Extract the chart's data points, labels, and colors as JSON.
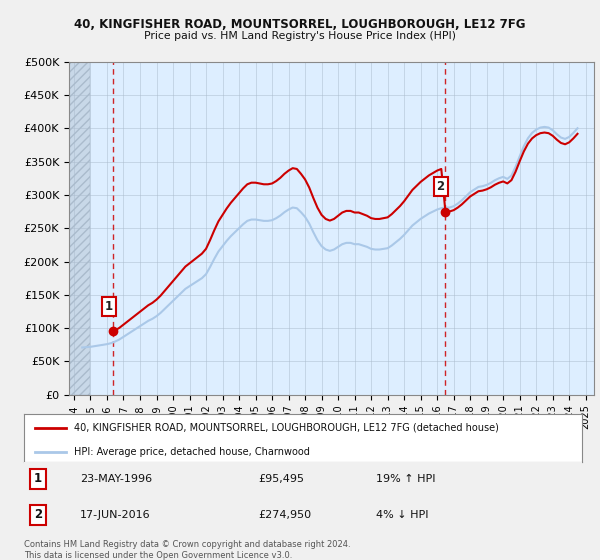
{
  "title1": "40, KINGFISHER ROAD, MOUNTSORREL, LOUGHBOROUGH, LE12 7FG",
  "title2": "Price paid vs. HM Land Registry's House Price Index (HPI)",
  "ylabel_ticks": [
    "£0",
    "£50K",
    "£100K",
    "£150K",
    "£200K",
    "£250K",
    "£300K",
    "£350K",
    "£400K",
    "£450K",
    "£500K"
  ],
  "ytick_vals": [
    0,
    50000,
    100000,
    150000,
    200000,
    250000,
    300000,
    350000,
    400000,
    450000,
    500000
  ],
  "xlim_start": 1993.7,
  "xlim_end": 2025.5,
  "ylim_min": 0,
  "ylim_max": 500000,
  "xticks": [
    1994,
    1995,
    1996,
    1997,
    1998,
    1999,
    2000,
    2001,
    2002,
    2003,
    2004,
    2005,
    2006,
    2007,
    2008,
    2009,
    2010,
    2011,
    2012,
    2013,
    2014,
    2015,
    2016,
    2017,
    2018,
    2019,
    2020,
    2021,
    2022,
    2023,
    2024,
    2025
  ],
  "hpi_color": "#aac8e8",
  "price_color": "#cc0000",
  "marker_color": "#cc0000",
  "vline_color": "#cc0000",
  "annotation_border_color": "#cc0000",
  "background_color": "#f0f0f0",
  "plot_bg_color": "#ddeeff",
  "grid_color": "#aabbcc",
  "point1": {
    "year": 1996.39,
    "value": 95495,
    "label": "1",
    "date": "23-MAY-1996",
    "price": "£95,495",
    "hpi_pct": "19% ↑ HPI"
  },
  "point2": {
    "year": 2016.46,
    "value": 274950,
    "label": "2",
    "date": "17-JUN-2016",
    "price": "£274,950",
    "hpi_pct": "4% ↓ HPI"
  },
  "legend_red_label": "40, KINGFISHER ROAD, MOUNTSORREL, LOUGHBOROUGH, LE12 7FG (detached house)",
  "legend_blue_label": "HPI: Average price, detached house, Charnwood",
  "footnote": "Contains HM Land Registry data © Crown copyright and database right 2024.\nThis data is licensed under the Open Government Licence v3.0.",
  "hpi_data_x": [
    1994.5,
    1994.75,
    1995.0,
    1995.25,
    1995.5,
    1995.75,
    1996.0,
    1996.25,
    1996.5,
    1996.75,
    1997.0,
    1997.25,
    1997.5,
    1997.75,
    1998.0,
    1998.25,
    1998.5,
    1998.75,
    1999.0,
    1999.25,
    1999.5,
    1999.75,
    2000.0,
    2000.25,
    2000.5,
    2000.75,
    2001.0,
    2001.25,
    2001.5,
    2001.75,
    2002.0,
    2002.25,
    2002.5,
    2002.75,
    2003.0,
    2003.25,
    2003.5,
    2003.75,
    2004.0,
    2004.25,
    2004.5,
    2004.75,
    2005.0,
    2005.25,
    2005.5,
    2005.75,
    2006.0,
    2006.25,
    2006.5,
    2006.75,
    2007.0,
    2007.25,
    2007.5,
    2007.75,
    2008.0,
    2008.25,
    2008.5,
    2008.75,
    2009.0,
    2009.25,
    2009.5,
    2009.75,
    2010.0,
    2010.25,
    2010.5,
    2010.75,
    2011.0,
    2011.25,
    2011.5,
    2011.75,
    2012.0,
    2012.25,
    2012.5,
    2012.75,
    2013.0,
    2013.25,
    2013.5,
    2013.75,
    2014.0,
    2014.25,
    2014.5,
    2014.75,
    2015.0,
    2015.25,
    2015.5,
    2015.75,
    2016.0,
    2016.25,
    2016.5,
    2016.75,
    2017.0,
    2017.25,
    2017.5,
    2017.75,
    2018.0,
    2018.25,
    2018.5,
    2018.75,
    2019.0,
    2019.25,
    2019.5,
    2019.75,
    2020.0,
    2020.25,
    2020.5,
    2020.75,
    2021.0,
    2021.25,
    2021.5,
    2021.75,
    2022.0,
    2022.25,
    2022.5,
    2022.75,
    2023.0,
    2023.25,
    2023.5,
    2023.75,
    2024.0,
    2024.25,
    2024.5
  ],
  "hpi_data_y": [
    71000,
    71500,
    72000,
    73000,
    74000,
    75000,
    76000,
    77500,
    80000,
    83000,
    87000,
    91000,
    95000,
    99000,
    103000,
    107000,
    111000,
    114000,
    118000,
    123000,
    129000,
    135000,
    141000,
    147000,
    153000,
    159000,
    163000,
    167000,
    171000,
    175000,
    181000,
    192000,
    204000,
    215000,
    223000,
    231000,
    238000,
    244000,
    250000,
    256000,
    261000,
    263000,
    263000,
    262000,
    261000,
    261000,
    262000,
    265000,
    269000,
    274000,
    278000,
    281000,
    280000,
    274000,
    267000,
    257000,
    244000,
    232000,
    223000,
    218000,
    216000,
    218000,
    222000,
    226000,
    228000,
    228000,
    226000,
    226000,
    224000,
    222000,
    219000,
    218000,
    218000,
    219000,
    220000,
    224000,
    229000,
    234000,
    240000,
    247000,
    254000,
    259000,
    264000,
    268000,
    272000,
    275000,
    278000,
    280000,
    281000,
    281000,
    283000,
    287000,
    292000,
    298000,
    304000,
    308000,
    312000,
    313000,
    315000,
    318000,
    322000,
    325000,
    327000,
    324000,
    329000,
    342000,
    358000,
    373000,
    385000,
    393000,
    398000,
    401000,
    402000,
    401000,
    397000,
    391000,
    386000,
    384000,
    387000,
    393000,
    400000
  ],
  "price_data_x": [
    1996.39,
    2016.46
  ],
  "price_data_y": [
    95495,
    274950
  ]
}
